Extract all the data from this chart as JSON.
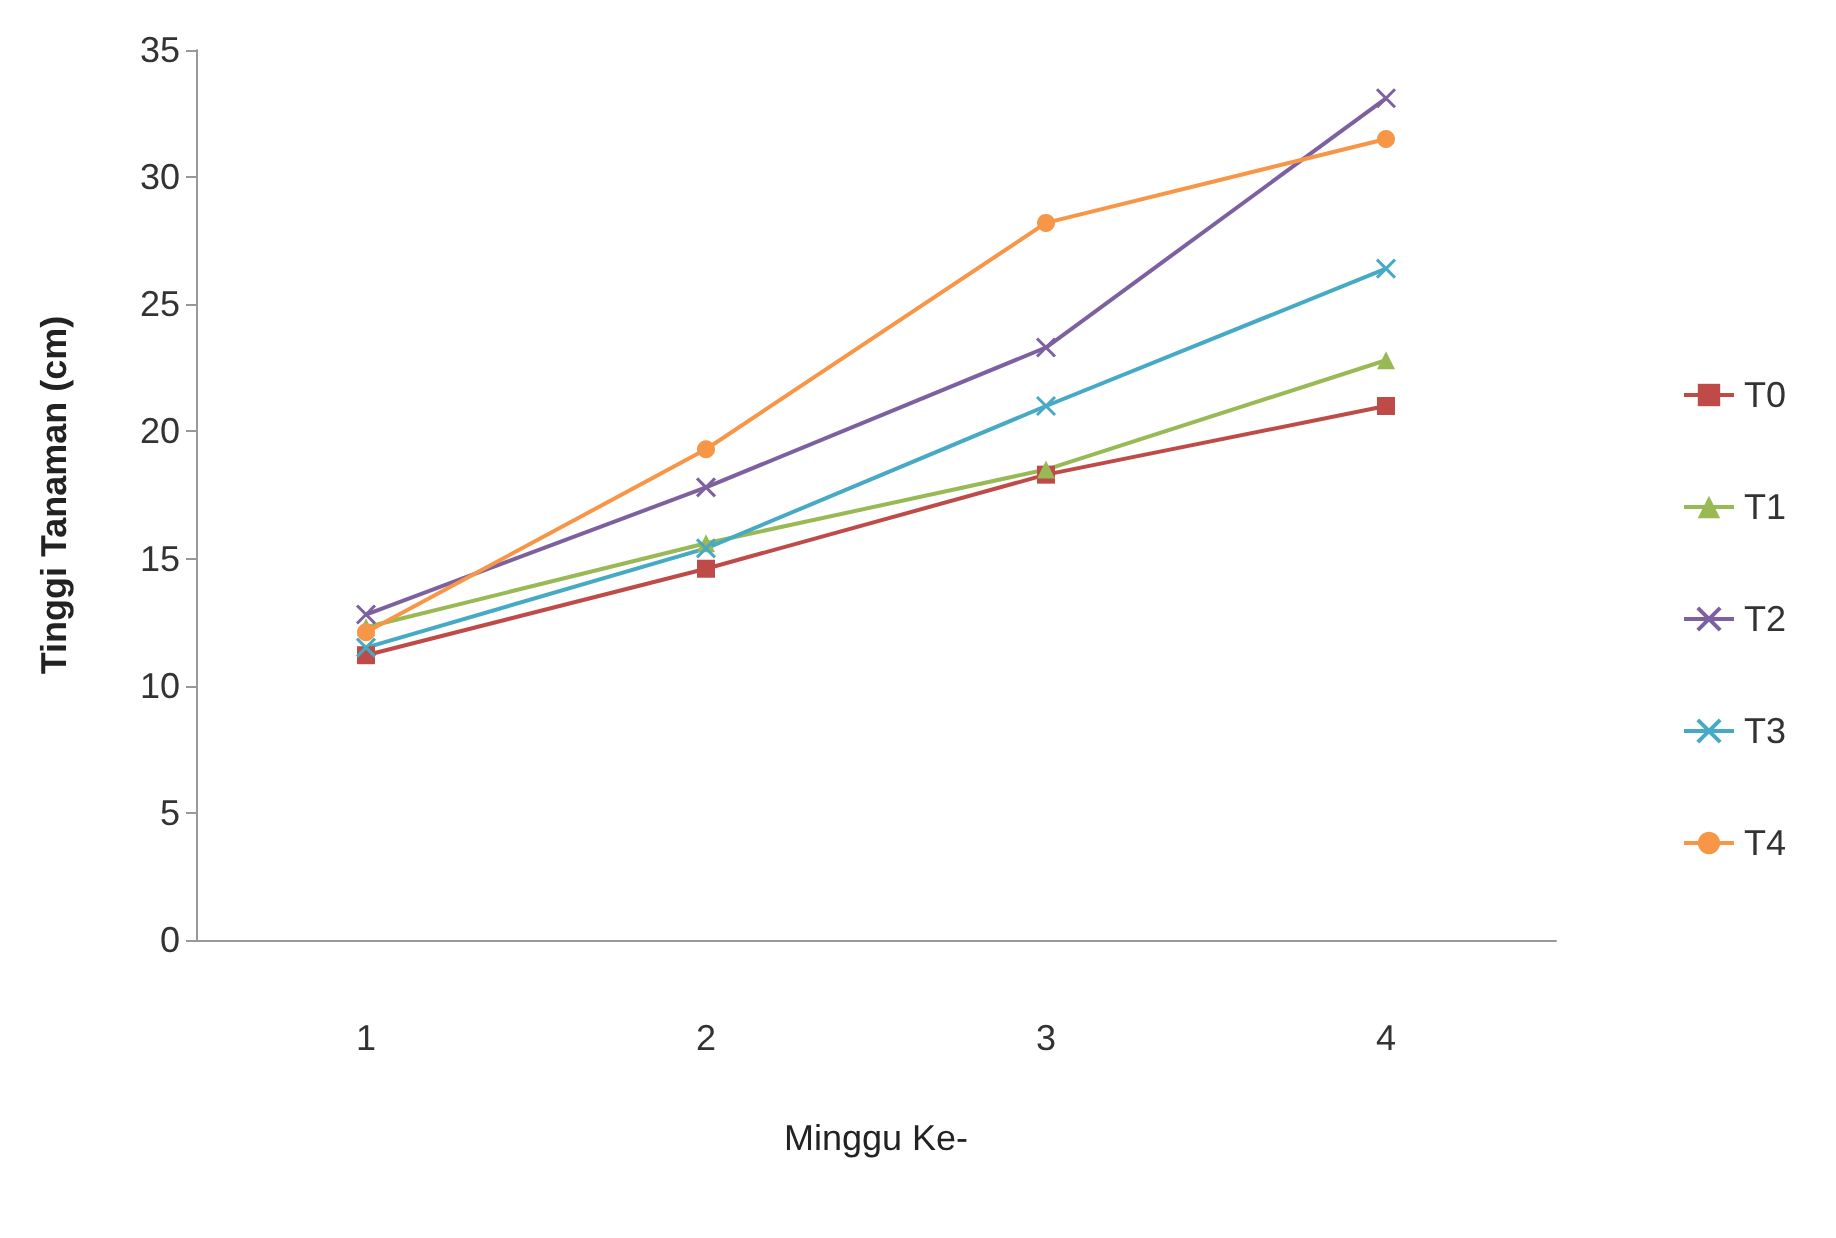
{
  "chart_data": {
    "type": "line",
    "xlabel": "Minggu Ke-",
    "ylabel": "Tinggi Tanaman (cm)",
    "categories": [
      "1",
      "2",
      "3",
      "4"
    ],
    "ylim": [
      0,
      35
    ],
    "yticks": [
      0,
      5,
      10,
      15,
      20,
      25,
      30,
      35
    ],
    "grid": false,
    "legend": "right",
    "series": [
      {
        "name": "T0",
        "color": "#be4b48",
        "marker": "square",
        "values": [
          11.2,
          14.6,
          18.3,
          21.0
        ]
      },
      {
        "name": "T1",
        "color": "#98b954",
        "marker": "triangle",
        "values": [
          12.3,
          15.6,
          18.5,
          22.8
        ]
      },
      {
        "name": "T2",
        "color": "#7d60a0",
        "marker": "cross",
        "values": [
          12.8,
          17.8,
          23.3,
          33.1
        ]
      },
      {
        "name": "T3",
        "color": "#46aac5",
        "marker": "cross",
        "values": [
          11.5,
          15.4,
          21.0,
          26.4
        ]
      },
      {
        "name": "T4",
        "color": "#f79646",
        "marker": "circle",
        "values": [
          12.1,
          19.3,
          28.2,
          31.5
        ]
      }
    ]
  }
}
